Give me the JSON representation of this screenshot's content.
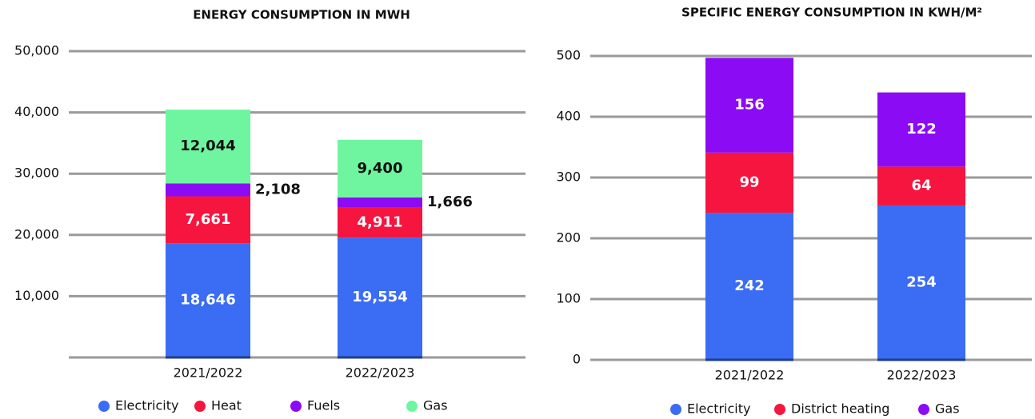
{
  "chart_data": [
    {
      "type": "stacked_bar",
      "title": "ENERGY CONSUMPTION IN MWH",
      "categories": [
        "2021/2022",
        "2022/2023"
      ],
      "series": [
        {
          "name": "Electricity",
          "color": "#3a6cf4",
          "values": [
            18646,
            19554
          ],
          "value_labels": [
            "18,646",
            "19,554"
          ]
        },
        {
          "name": "Heat",
          "color": "#f5153f",
          "values": [
            7661,
            4911
          ],
          "value_labels": [
            "7,661",
            "4,911"
          ]
        },
        {
          "name": "Fuels",
          "color": "#8b0cf4",
          "values": [
            2108,
            1666
          ],
          "value_labels": [
            "2,108",
            "1,666"
          ]
        },
        {
          "name": "Gas",
          "color": "#6ff5a0",
          "values": [
            12044,
            9400
          ],
          "value_labels": [
            "12,044",
            "9,400"
          ]
        }
      ],
      "ylim": [
        0,
        50000
      ],
      "yticks": [
        {
          "value": 10000,
          "label": "10,000"
        },
        {
          "value": 20000,
          "label": "20,000"
        },
        {
          "value": 30000,
          "label": "30,000"
        },
        {
          "value": 40000,
          "label": "40,000"
        },
        {
          "value": 50000,
          "label": "50,000"
        }
      ],
      "grid": true
    },
    {
      "type": "stacked_bar",
      "title": "SPECIFIC ENERGY CONSUMPTION IN KWH/M²",
      "categories": [
        "2021/2022",
        "2022/2023"
      ],
      "series": [
        {
          "name": "Electricity",
          "color": "#3a6cf4",
          "values": [
            242,
            254
          ]
        },
        {
          "name": "District heating",
          "color": "#f5153f",
          "values": [
            99,
            64
          ]
        },
        {
          "name": "Gas",
          "color": "#8b0cf4",
          "values": [
            156,
            122
          ]
        }
      ],
      "ylim": [
        0,
        500
      ],
      "yticks": [
        0,
        100,
        200,
        300,
        400,
        500
      ],
      "grid": true
    }
  ]
}
